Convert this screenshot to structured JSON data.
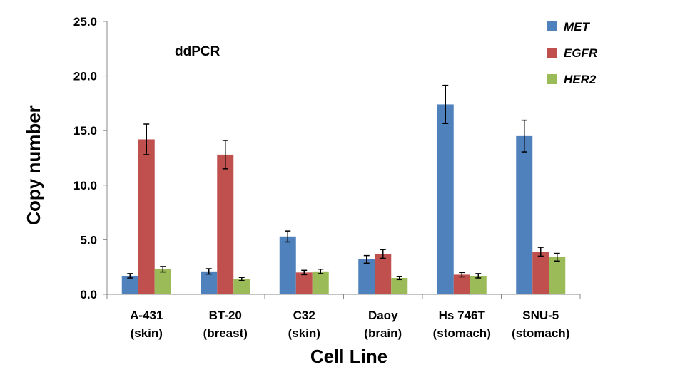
{
  "chart_data": {
    "type": "bar",
    "title": "",
    "annotation": "ddPCR",
    "xlabel": "Cell Line",
    "ylabel": "Copy number",
    "ylim": [
      0,
      25
    ],
    "yticks": [
      "0.0",
      "5.0",
      "10.0",
      "15.0",
      "20.0",
      "25.0"
    ],
    "ytick_values": [
      0,
      5,
      10,
      15,
      20,
      25
    ],
    "categories": [
      [
        "A-431",
        "(skin)"
      ],
      [
        "BT-20",
        "(breast)"
      ],
      [
        "C32",
        "(skin)"
      ],
      [
        "Daoy",
        "(brain)"
      ],
      [
        "Hs 746T",
        "(stomach)"
      ],
      [
        "SNU-5",
        "(stomach)"
      ]
    ],
    "series": [
      {
        "name": "MET",
        "color": "#4F81BD",
        "values": [
          1.7,
          2.1,
          5.3,
          3.2,
          17.4,
          14.5
        ],
        "errors": [
          0.2,
          0.25,
          0.5,
          0.35,
          1.75,
          1.45
        ]
      },
      {
        "name": "EGFR",
        "color": "#C0504D",
        "values": [
          14.2,
          12.8,
          2.0,
          3.7,
          1.8,
          3.9
        ],
        "errors": [
          1.4,
          1.3,
          0.2,
          0.4,
          0.2,
          0.4
        ]
      },
      {
        "name": "HER2",
        "color": "#9BBB59",
        "values": [
          2.3,
          1.4,
          2.1,
          1.5,
          1.7,
          3.4
        ],
        "errors": [
          0.25,
          0.15,
          0.2,
          0.15,
          0.2,
          0.35
        ]
      }
    ],
    "legend_position": "top-right",
    "grid": false
  }
}
